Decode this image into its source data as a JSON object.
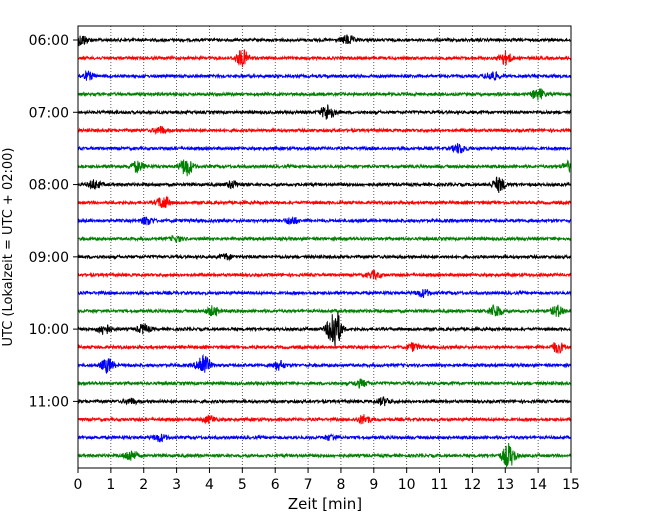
{
  "chart_data": {
    "type": "line",
    "title": "",
    "xlabel": "Zeit  [min]",
    "ylabel": "UTC (Lokalzeit = UTC + 02:00)",
    "xlim": [
      0,
      15
    ],
    "x_ticks": [
      "0",
      "1",
      "2",
      "3",
      "4",
      "5",
      "6",
      "7",
      "8",
      "9",
      "10",
      "11",
      "12",
      "13",
      "14",
      "15"
    ],
    "grid_x": true,
    "grid_style": "dotted",
    "y_tick_labels": [
      "06:00",
      "07:00",
      "08:00",
      "09:00",
      "10:00",
      "11:00"
    ],
    "trace_interval_minutes": 15,
    "trace_colors_cycle": [
      "#000000",
      "#ff0000",
      "#0000ff",
      "#008000"
    ],
    "traces": [
      {
        "start": "06:00",
        "bursts": [
          [
            0.1,
            0.6
          ],
          [
            8.2,
            0.5
          ]
        ]
      },
      {
        "start": "06:15",
        "bursts": [
          [
            5.0,
            0.9
          ],
          [
            13.0,
            0.7
          ]
        ]
      },
      {
        "start": "06:30",
        "bursts": [
          [
            0.3,
            0.4
          ],
          [
            12.6,
            0.5
          ]
        ]
      },
      {
        "start": "06:45",
        "bursts": [
          [
            14.0,
            0.6
          ]
        ]
      },
      {
        "start": "07:00",
        "bursts": [
          [
            7.6,
            0.9
          ]
        ]
      },
      {
        "start": "07:15",
        "bursts": [
          [
            2.5,
            0.4
          ]
        ]
      },
      {
        "start": "07:30",
        "bursts": [
          [
            11.6,
            0.5
          ]
        ]
      },
      {
        "start": "07:45",
        "bursts": [
          [
            1.8,
            0.6
          ],
          [
            3.3,
            1.0
          ],
          [
            14.9,
            0.5
          ]
        ]
      },
      {
        "start": "08:00",
        "bursts": [
          [
            0.5,
            0.5
          ],
          [
            4.7,
            0.4
          ],
          [
            12.8,
            0.8
          ]
        ]
      },
      {
        "start": "08:15",
        "bursts": [
          [
            2.6,
            0.7
          ]
        ]
      },
      {
        "start": "08:30",
        "bursts": [
          [
            2.1,
            0.4
          ],
          [
            6.5,
            0.4
          ]
        ]
      },
      {
        "start": "08:45",
        "bursts": [
          [
            3.0,
            0.3
          ]
        ]
      },
      {
        "start": "09:00",
        "bursts": [
          [
            4.5,
            0.3
          ]
        ]
      },
      {
        "start": "09:15",
        "bursts": [
          [
            9.0,
            0.4
          ]
        ]
      },
      {
        "start": "09:30",
        "bursts": [
          [
            10.5,
            0.4
          ]
        ]
      },
      {
        "start": "09:45",
        "bursts": [
          [
            4.1,
            0.5
          ],
          [
            12.7,
            0.7
          ],
          [
            14.6,
            0.6
          ]
        ]
      },
      {
        "start": "10:00",
        "bursts": [
          [
            0.8,
            0.6
          ],
          [
            2.0,
            0.5
          ],
          [
            7.8,
            2.6
          ]
        ]
      },
      {
        "start": "10:15",
        "bursts": [
          [
            10.2,
            0.4
          ],
          [
            14.6,
            0.6
          ]
        ]
      },
      {
        "start": "10:30",
        "bursts": [
          [
            0.9,
            0.8
          ],
          [
            3.8,
            1.3
          ],
          [
            6.1,
            0.5
          ]
        ]
      },
      {
        "start": "10:45",
        "bursts": [
          [
            8.6,
            0.4
          ]
        ]
      },
      {
        "start": "11:00",
        "bursts": [
          [
            1.6,
            0.3
          ],
          [
            9.3,
            0.4
          ]
        ]
      },
      {
        "start": "11:15",
        "bursts": [
          [
            4.0,
            0.4
          ],
          [
            8.7,
            0.5
          ]
        ]
      },
      {
        "start": "11:30",
        "bursts": [
          [
            2.5,
            0.4
          ],
          [
            7.7,
            0.3
          ]
        ]
      },
      {
        "start": "11:45",
        "bursts": [
          [
            1.6,
            0.6
          ],
          [
            13.1,
            1.3
          ]
        ]
      }
    ]
  }
}
